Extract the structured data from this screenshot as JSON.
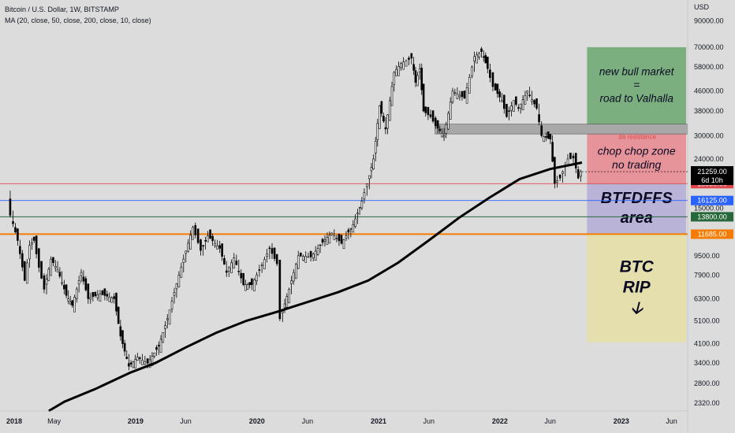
{
  "header": {
    "symbol_line": "Bitcoin / U.S. Dollar, 1W, BITSTAMP",
    "indicator_line": "MA (20, close, 50, close, 200, close, 10, close)"
  },
  "colors": {
    "background": "#dcdcdc",
    "zone_bull": "#6aa770",
    "zone_chop": "#e8868d",
    "zone_btfd": "#b3add6",
    "zone_rip": "#e6dfa6",
    "resistance_zone": "#a8a8a8",
    "line_red": "#e0474c",
    "line_blue": "#2962ff",
    "line_green": "#26683a",
    "line_orange": "#f57c00",
    "ma200": "#000000",
    "candle": "#000000"
  },
  "chart_data": {
    "type": "candlestick",
    "title": "Bitcoin / U.S. Dollar, 1W, BITSTAMP",
    "y_scale": "log",
    "ylim": [
      2150,
      110000
    ],
    "y_unit": "USD",
    "y_ticks": [
      "90000.00",
      "70000.00",
      "58000.00",
      "46000.00",
      "38000.00",
      "30000.00",
      "24000.00",
      "15000.00",
      "9500.00",
      "7900.00",
      "6300.00",
      "5100.00",
      "4100.00",
      "3400.00",
      "2800.00",
      "2320.00"
    ],
    "x_range": [
      "2018-01-01",
      "2023-07-15"
    ],
    "x_ticks": [
      {
        "date": "2018-01-01",
        "label": "2018",
        "bold": true
      },
      {
        "date": "2018-05-01",
        "label": "May",
        "bold": false
      },
      {
        "date": "2019-01-01",
        "label": "2019",
        "bold": true
      },
      {
        "date": "2019-06-01",
        "label": "Jun",
        "bold": false
      },
      {
        "date": "2020-01-01",
        "label": "2020",
        "bold": true
      },
      {
        "date": "2020-06-01",
        "label": "Jun",
        "bold": false
      },
      {
        "date": "2021-01-01",
        "label": "2021",
        "bold": true
      },
      {
        "date": "2021-06-01",
        "label": "Jun",
        "bold": false
      },
      {
        "date": "2022-01-01",
        "label": "2022",
        "bold": true
      },
      {
        "date": "2022-06-01",
        "label": "Jun",
        "bold": false
      },
      {
        "date": "2023-01-01",
        "label": "2023",
        "bold": true
      },
      {
        "date": "2023-06-01",
        "label": "Jun",
        "bold": false
      }
    ],
    "price_series": [
      [
        "2017-12-15",
        17000
      ],
      [
        "2017-12-25",
        14000
      ],
      [
        "2018-01-15",
        11000
      ],
      [
        "2018-02-05",
        7500
      ],
      [
        "2018-02-20",
        10500
      ],
      [
        "2018-03-05",
        11000
      ],
      [
        "2018-03-20",
        8500
      ],
      [
        "2018-04-05",
        6900
      ],
      [
        "2018-04-25",
        9200
      ],
      [
        "2018-05-15",
        8300
      ],
      [
        "2018-06-10",
        6500
      ],
      [
        "2018-06-28",
        5900
      ],
      [
        "2018-07-25",
        8100
      ],
      [
        "2018-08-15",
        6300
      ],
      [
        "2018-09-20",
        6600
      ],
      [
        "2018-11-01",
        6300
      ],
      [
        "2018-11-20",
        4400
      ],
      [
        "2018-12-15",
        3300
      ],
      [
        "2019-01-10",
        3600
      ],
      [
        "2019-02-10",
        3400
      ],
      [
        "2019-03-15",
        4000
      ],
      [
        "2019-04-10",
        5200
      ],
      [
        "2019-05-15",
        7900
      ],
      [
        "2019-06-26",
        12500
      ],
      [
        "2019-07-20",
        10000
      ],
      [
        "2019-08-10",
        11500
      ],
      [
        "2019-09-15",
        10200
      ],
      [
        "2019-10-05",
        8100
      ],
      [
        "2019-10-28",
        9300
      ],
      [
        "2019-11-25",
        7200
      ],
      [
        "2019-12-20",
        7200
      ],
      [
        "2020-01-20",
        8700
      ],
      [
        "2020-02-12",
        10200
      ],
      [
        "2020-03-05",
        8800
      ],
      [
        "2020-03-15",
        5200
      ],
      [
        "2020-04-10",
        6900
      ],
      [
        "2020-05-08",
        9500
      ],
      [
        "2020-06-15",
        9400
      ],
      [
        "2020-07-27",
        11100
      ],
      [
        "2020-08-17",
        11800
      ],
      [
        "2020-09-15",
        10700
      ],
      [
        "2020-10-20",
        12800
      ],
      [
        "2020-11-15",
        16000
      ],
      [
        "2020-12-01",
        18900
      ],
      [
        "2020-12-20",
        24000
      ],
      [
        "2021-01-07",
        40000
      ],
      [
        "2021-01-25",
        32000
      ],
      [
        "2021-02-20",
        55000
      ],
      [
        "2021-03-13",
        60000
      ],
      [
        "2021-04-14",
        63000
      ],
      [
        "2021-04-25",
        50000
      ],
      [
        "2021-05-08",
        57000
      ],
      [
        "2021-05-19",
        38000
      ],
      [
        "2021-06-10",
        36000
      ],
      [
        "2021-06-25",
        33000
      ],
      [
        "2021-07-20",
        30000
      ],
      [
        "2021-08-15",
        46000
      ],
      [
        "2021-09-20",
        43000
      ],
      [
        "2021-10-20",
        64000
      ],
      [
        "2021-11-10",
        67000
      ],
      [
        "2021-11-28",
        57000
      ],
      [
        "2021-12-15",
        48000
      ],
      [
        "2022-01-10",
        42000
      ],
      [
        "2022-01-25",
        36000
      ],
      [
        "2022-02-15",
        42000
      ],
      [
        "2022-03-01",
        39000
      ],
      [
        "2022-03-28",
        46000
      ],
      [
        "2022-04-25",
        39000
      ],
      [
        "2022-05-10",
        30000
      ],
      [
        "2022-06-05",
        29000
      ],
      [
        "2022-06-18",
        19000
      ],
      [
        "2022-07-05",
        20000
      ],
      [
        "2022-07-28",
        24000
      ],
      [
        "2022-08-14",
        24200
      ],
      [
        "2022-08-28",
        20000
      ],
      [
        "2022-09-05",
        21259
      ]
    ],
    "ma200_series": [
      [
        "2018-04-15",
        2150
      ],
      [
        "2018-06-01",
        2350
      ],
      [
        "2018-09-01",
        2650
      ],
      [
        "2018-12-15",
        3100
      ],
      [
        "2019-03-01",
        3400
      ],
      [
        "2019-06-01",
        3950
      ],
      [
        "2019-09-01",
        4550
      ],
      [
        "2019-12-01",
        5100
      ],
      [
        "2020-03-01",
        5550
      ],
      [
        "2020-06-01",
        6100
      ],
      [
        "2020-09-01",
        6700
      ],
      [
        "2020-12-01",
        7500
      ],
      [
        "2021-03-01",
        8900
      ],
      [
        "2021-06-01",
        11000
      ],
      [
        "2021-09-01",
        13700
      ],
      [
        "2021-12-01",
        16600
      ],
      [
        "2022-03-01",
        19800
      ],
      [
        "2022-06-01",
        21800
      ],
      [
        "2022-09-05",
        23200
      ]
    ],
    "horizontal_lines": [
      {
        "price": 18950,
        "color": "#e0474c"
      },
      {
        "price": 16125,
        "color": "#2962ff"
      },
      {
        "price": 13800,
        "color": "#26683a"
      },
      {
        "price": 11685,
        "color": "#f57c00"
      }
    ],
    "resistance_band": {
      "from_date": "2021-06-20",
      "to_date": "2023-07-15",
      "low": 30500,
      "high": 33500,
      "label": "da resistance"
    },
    "zones": [
      {
        "from_date": "2022-09-20",
        "to_date": "2023-07-15",
        "low": 33500,
        "high": 70000,
        "color": "#6aa770",
        "lines": [
          "new bull market",
          "=",
          "road to Valhalla"
        ],
        "italic": true,
        "bold": false,
        "size": 13.5
      },
      {
        "from_date": "2022-09-20",
        "to_date": "2023-07-15",
        "low": 18950,
        "high": 30500,
        "color": "#e8868d",
        "lines": [
          "chop chop zone",
          "no trading"
        ],
        "italic": true,
        "bold": false,
        "size": 14
      },
      {
        "from_date": "2022-09-20",
        "to_date": "2023-07-15",
        "low": 11685,
        "high": 18950,
        "color": "#b3add6",
        "lines": [
          "BTFDFFS",
          "area"
        ],
        "italic": true,
        "bold": true,
        "size": 20
      },
      {
        "from_date": "2022-09-20",
        "to_date": "2023-07-15",
        "low": 4150,
        "high": 11685,
        "color": "#e6dfa6",
        "lines": [
          "BTC",
          "RIP",
          "🡣"
        ],
        "italic": true,
        "bold": true,
        "size": 21
      }
    ],
    "last_price": {
      "value": 21259,
      "label": "21259.00",
      "countdown": "6d 10h"
    },
    "price_labels": [
      {
        "value": 18950,
        "label": "18950.00",
        "color": "#e0474c"
      },
      {
        "value": 16125,
        "label": "16125.00",
        "color": "#2962ff"
      },
      {
        "value": 13800,
        "label": "13800.00",
        "color": "#26683a"
      },
      {
        "value": 11685,
        "label": "11685.00",
        "color": "#f57c00"
      }
    ],
    "axis_currency": "USD"
  }
}
